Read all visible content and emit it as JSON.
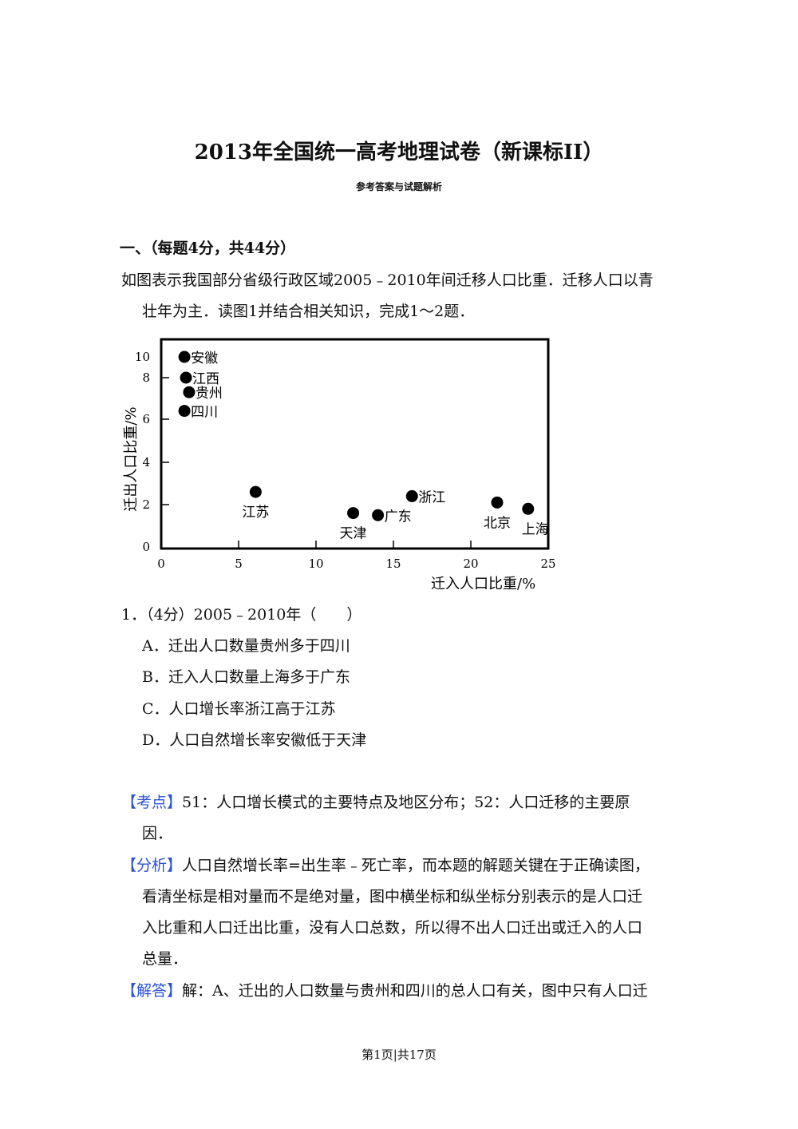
{
  "header": {
    "title": "2013年全国统一高考地理试卷（新课标II）",
    "subtitle": "参考答案与试题解析"
  },
  "section": {
    "heading": "一、（每题4分，共44分）",
    "intro_lines": [
      "如图表示我国部分省级行政区域2005﹣2010年间迁移人口比重．迁移人口以青",
      "壮年为主．读图1并结合相关知识，完成1～2题．"
    ]
  },
  "chart_data": {
    "type": "scatter",
    "xlabel": "迁入人口比重/%",
    "ylabel": "迁出人口比重/%",
    "xlim": [
      0,
      25
    ],
    "ylim": [
      0,
      10
    ],
    "x_ticks": [
      "0",
      "5",
      "10",
      "15",
      "20",
      "25"
    ],
    "y_ticks": [
      "0",
      "2",
      "4",
      "6",
      "8",
      "10"
    ],
    "grid": false,
    "points": [
      {
        "label": "安徽",
        "x": 1.5,
        "y": 10.0
      },
      {
        "label": "江西",
        "x": 1.6,
        "y": 8.0
      },
      {
        "label": "贵州",
        "x": 1.8,
        "y": 7.3
      },
      {
        "label": "四川",
        "x": 1.5,
        "y": 6.4
      },
      {
        "label": "江苏",
        "x": 6.1,
        "y": 2.6
      },
      {
        "label": "天津",
        "x": 12.4,
        "y": 1.6
      },
      {
        "label": "广东",
        "x": 14.0,
        "y": 1.5
      },
      {
        "label": "浙江",
        "x": 16.2,
        "y": 2.4
      },
      {
        "label": "北京",
        "x": 21.7,
        "y": 2.1
      },
      {
        "label": "上海",
        "x": 23.7,
        "y": 1.8
      }
    ]
  },
  "question": {
    "stem": "1．（4分）2005﹣2010年（　　）",
    "options": [
      "A．迁出人口数量贵州多于四川",
      "B．迁入人口数量上海多于广东",
      "C．人口增长率浙江高于江苏",
      "D．人口自然增长率安徽低于天津"
    ]
  },
  "analysis": {
    "kaodian_tag": "【考点】",
    "kaodian_lines": [
      "51：人口增长模式的主要特点及地区分布；52：人口迁移的主要原",
      "因．"
    ],
    "fenxi_tag": "【分析】",
    "fenxi_lines": [
      "人口自然增长率=出生率﹣死亡率，而本题的解题关键在于正确读图，",
      "看清坐标是相对量而不是绝对量，图中横坐标和纵坐标分别表示的是人口迁",
      "入比重和人口迁出比重，没有人口总数，所以得不出人口迁出或迁入的人口",
      "总量．"
    ],
    "jieda_tag": "【解答】",
    "jieda_lines": [
      "解：A、迁出的人口数量与贵州和四川的总人口有关，图中只有人口迁"
    ]
  },
  "footer": {
    "page": "第1页|共17页"
  },
  "colors": {
    "tag": "#2b52d6",
    "text": "#111111"
  }
}
